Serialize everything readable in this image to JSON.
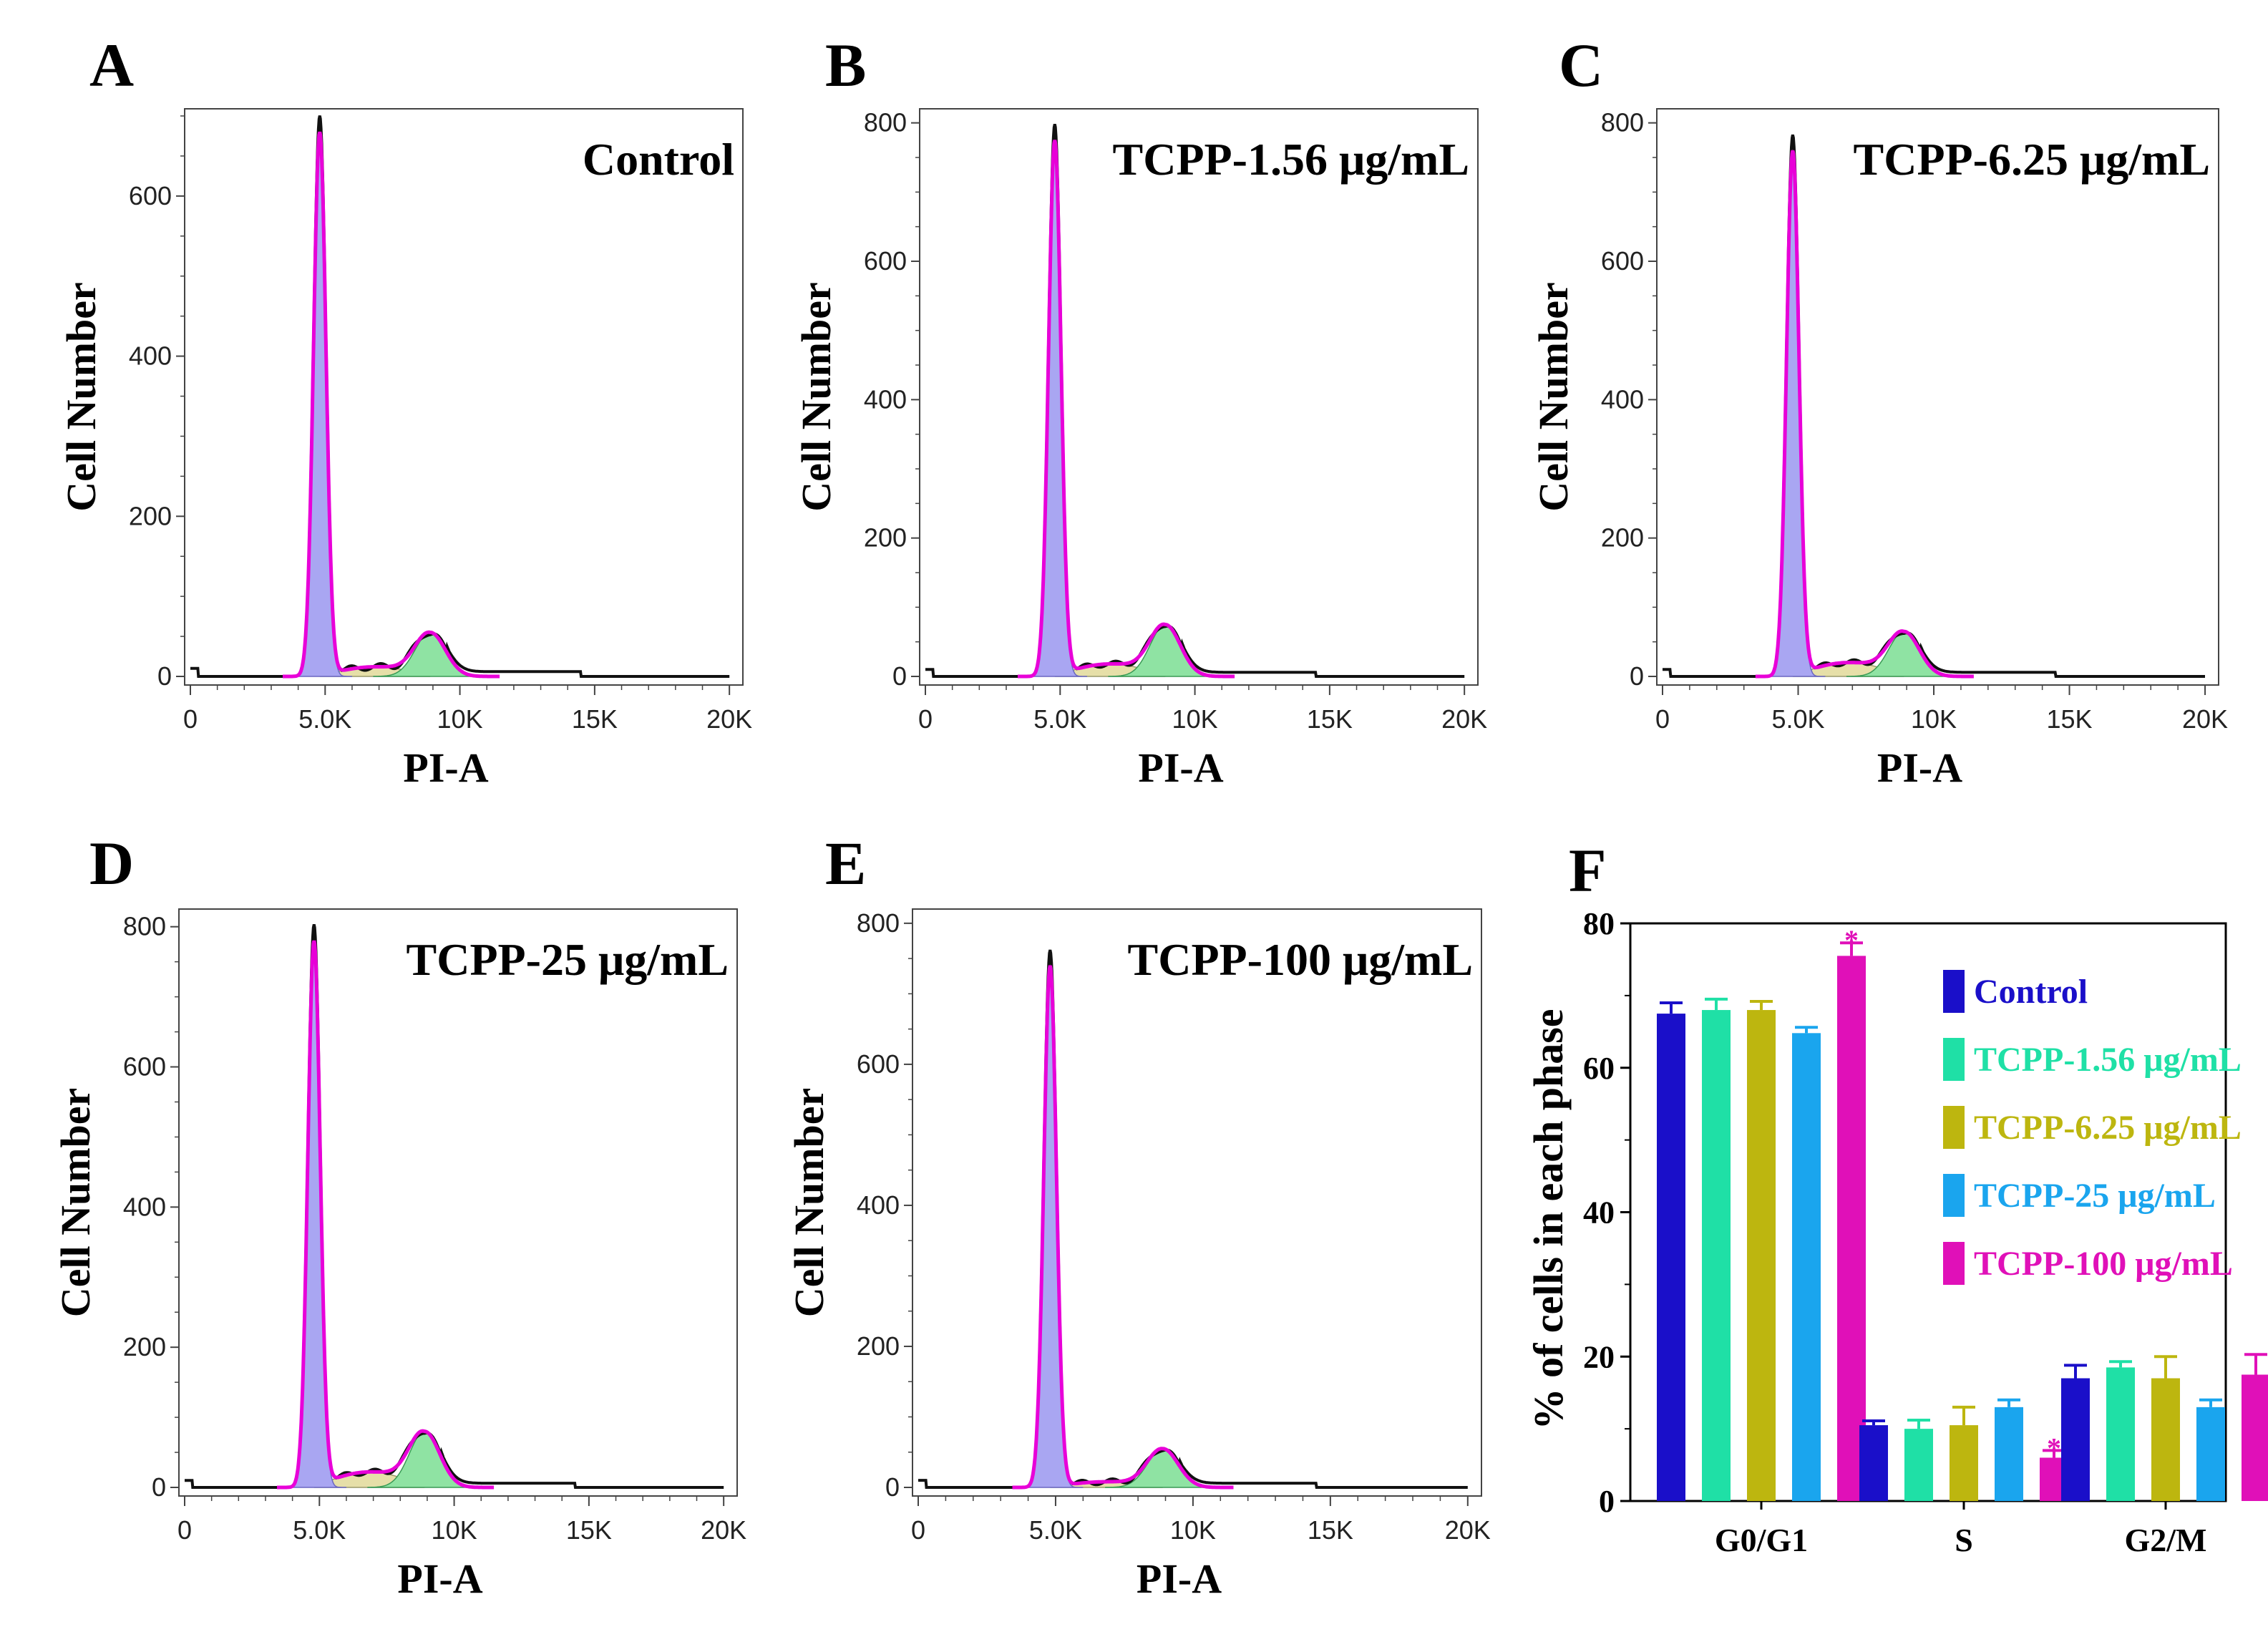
{
  "histograms": [
    {
      "letter": "A",
      "title": "Control",
      "ylabel": "Cell Number",
      "xlabel": "PI-A",
      "ymax": 700,
      "yticks": [
        "0",
        "200",
        "400",
        "600"
      ],
      "peak": 680,
      "g2": 55,
      "s": 12
    },
    {
      "letter": "B",
      "title": "TCPP-1.56 μg/mL",
      "ylabel": "Cell Number",
      "xlabel": "PI-A",
      "ymax": 810,
      "yticks": [
        "0",
        "200",
        "400",
        "600",
        "800"
      ],
      "peak": 775,
      "g2": 75,
      "s": 18
    },
    {
      "letter": "C",
      "title": "TCPP-6.25 μg/mL",
      "ylabel": "Cell Number",
      "xlabel": "PI-A",
      "ymax": 810,
      "yticks": [
        "0",
        "200",
        "400",
        "600",
        "800"
      ],
      "peak": 760,
      "g2": 65,
      "s": 20
    },
    {
      "letter": "D",
      "title": "TCPP-25 μg/mL",
      "ylabel": "Cell Number",
      "xlabel": "PI-A",
      "ymax": 815,
      "yticks": [
        "0",
        "200",
        "400",
        "600",
        "800"
      ],
      "peak": 780,
      "g2": 80,
      "s": 22
    },
    {
      "letter": "E",
      "title": "TCPP-100 μg/mL",
      "ylabel": "Cell Number",
      "xlabel": "PI-A",
      "ymax": 810,
      "yticks": [
        "0",
        "200",
        "400",
        "600",
        "800"
      ],
      "peak": 740,
      "g2": 55,
      "s": 8
    }
  ],
  "xticks": [
    "0",
    "5.0K",
    "10K",
    "15K",
    "20K"
  ],
  "colors": {
    "g1_fill": "#a9a6f2",
    "s_fill": "#e6dfa8",
    "g2_fill": "#8fe3a3",
    "fit_line": "#e800d8",
    "data_line": "#111111"
  },
  "chart_data": {
    "letter": "F",
    "type": "bar",
    "ylabel": "% of cells in each phase",
    "ylim": [
      0,
      80
    ],
    "yticks": [
      "0",
      "20",
      "40",
      "60",
      "80"
    ],
    "categories": [
      "G0/G1",
      "S",
      "G2/M"
    ],
    "series": [
      {
        "name": "Control",
        "color": "#1a0fc9",
        "values": [
          67.5,
          10.5,
          17.0
        ],
        "errors": [
          1.5,
          0.6,
          1.8
        ]
      },
      {
        "name": "TCPP-1.56 μg/mL",
        "color": "#1fe0a6",
        "values": [
          68.0,
          10.0,
          18.5
        ],
        "errors": [
          1.5,
          1.2,
          0.8
        ]
      },
      {
        "name": "TCPP-6.25 μg/mL",
        "color": "#bdb60f",
        "values": [
          68.0,
          10.5,
          17.0
        ],
        "errors": [
          1.2,
          2.5,
          3.0
        ]
      },
      {
        "name": "TCPP-25 μg/mL",
        "color": "#1aa5ee",
        "values": [
          64.8,
          13.0,
          13.0
        ],
        "errors": [
          0.8,
          1.0,
          1.0
        ]
      },
      {
        "name": "TCPP-100 μg/mL",
        "color": "#e010b8",
        "values": [
          75.5,
          6.0,
          17.5
        ],
        "errors": [
          1.8,
          1.0,
          2.8
        ]
      }
    ],
    "annotations": [
      {
        "category": "G0/G1",
        "series": "TCPP-100 μg/mL",
        "text": "*"
      },
      {
        "category": "S",
        "series": "TCPP-100 μg/mL",
        "text": "*"
      }
    ]
  }
}
